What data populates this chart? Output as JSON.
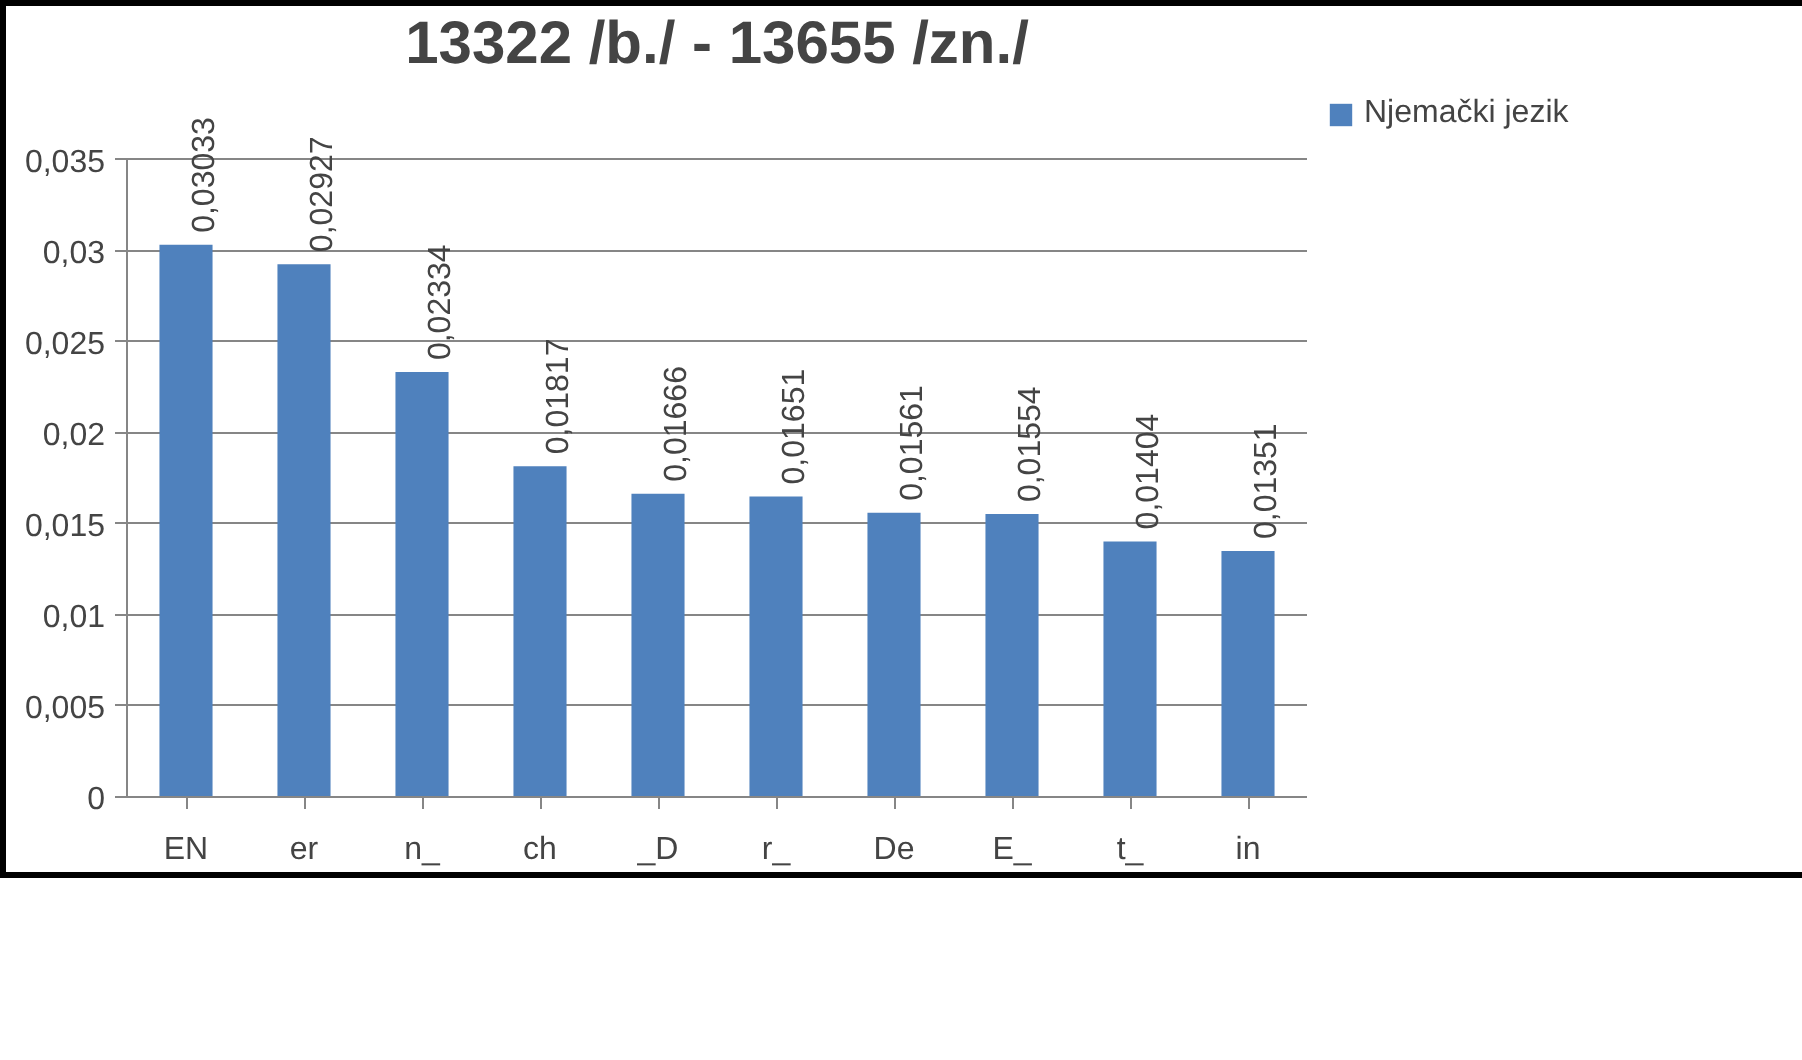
{
  "chart_data": {
    "type": "bar",
    "title": "13322 /b./ - 13655 /zn./",
    "categories": [
      "EN",
      "er",
      "n_",
      "ch",
      "_D",
      "r_",
      "De",
      "E_",
      "t_",
      "in"
    ],
    "series": [
      {
        "name": "Njemački jezik",
        "color": "#4f81bd",
        "values": [
          0.03033,
          0.02927,
          0.02334,
          0.01817,
          0.01666,
          0.01651,
          0.01561,
          0.01554,
          0.01404,
          0.01351
        ],
        "value_labels": [
          "0,03033",
          "0,02927",
          "0,02334",
          "0,01817",
          "0,01666",
          "0,01651",
          "0,01561",
          "0,01554",
          "0,01404",
          "0,01351"
        ]
      }
    ],
    "ylim": [
      0,
      0.035
    ],
    "yticks": [
      {
        "value": 0,
        "label": "0"
      },
      {
        "value": 0.005,
        "label": "0,005"
      },
      {
        "value": 0.01,
        "label": "0,01"
      },
      {
        "value": 0.015,
        "label": "0,015"
      },
      {
        "value": 0.02,
        "label": "0,02"
      },
      {
        "value": 0.025,
        "label": "0,025"
      },
      {
        "value": 0.03,
        "label": "0,03"
      },
      {
        "value": 0.035,
        "label": "0,035"
      }
    ],
    "grid": "y",
    "legend": "right"
  }
}
